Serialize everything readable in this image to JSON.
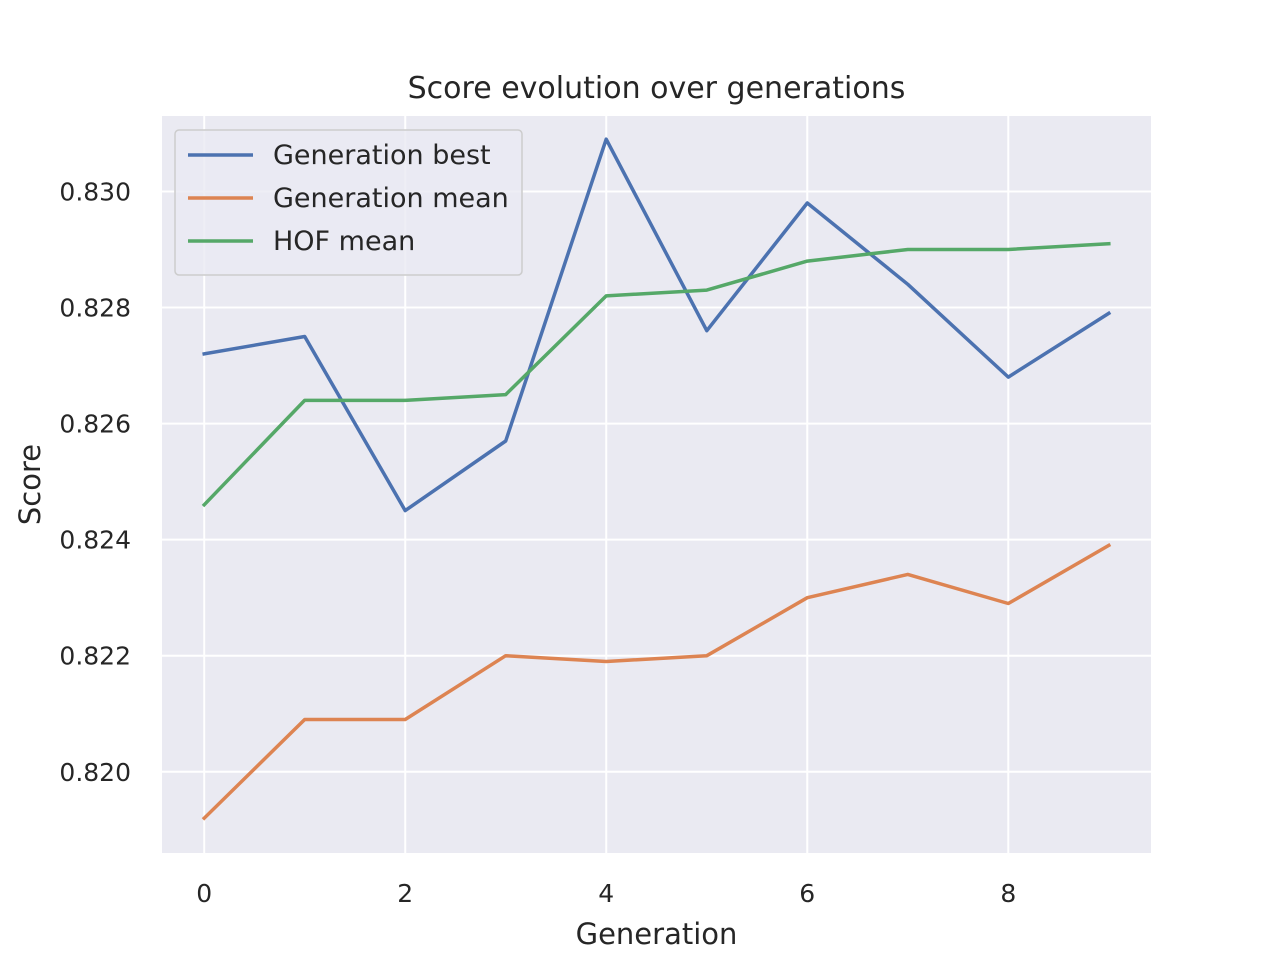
{
  "chart_data": {
    "type": "line",
    "title": "Score evolution over generations",
    "xlabel": "Generation",
    "ylabel": "Score",
    "x": [
      0,
      1,
      2,
      3,
      4,
      5,
      6,
      7,
      8,
      9
    ],
    "xlim": [
      -0.42,
      9.42
    ],
    "ylim": [
      0.8186,
      0.8313
    ],
    "xticks": [
      0,
      2,
      4,
      6,
      8
    ],
    "xtick_labels": [
      "0",
      "2",
      "4",
      "6",
      "8"
    ],
    "yticks": [
      0.82,
      0.822,
      0.824,
      0.826,
      0.828,
      0.83
    ],
    "ytick_labels": [
      "0.820",
      "0.822",
      "0.824",
      "0.826",
      "0.828",
      "0.830"
    ],
    "grid": true,
    "legend_position": "upper-left",
    "series": [
      {
        "name": "Generation best",
        "color": "#4c72b0",
        "values": [
          0.8272,
          0.8275,
          0.8245,
          0.8257,
          0.8309,
          0.8276,
          0.8298,
          0.8284,
          0.8268,
          0.8279
        ]
      },
      {
        "name": "Generation mean",
        "color": "#dd8452",
        "values": [
          0.8192,
          0.8209,
          0.8209,
          0.822,
          0.8219,
          0.822,
          0.823,
          0.8234,
          0.8229,
          0.8239
        ]
      },
      {
        "name": "HOF mean",
        "color": "#55a868",
        "values": [
          0.8246,
          0.8264,
          0.8264,
          0.8265,
          0.8282,
          0.8283,
          0.8288,
          0.829,
          0.829,
          0.8291
        ]
      }
    ]
  },
  "colors": {
    "plot_background": "#eaeaf2",
    "grid": "#ffffff",
    "text": "#262626"
  }
}
